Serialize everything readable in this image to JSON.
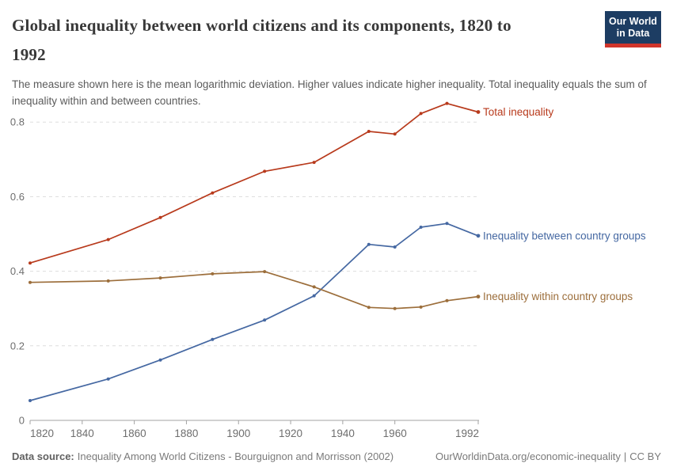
{
  "header": {
    "title": "Global inequality between world citizens and its components, 1820 to\n1992",
    "subtitle": "The measure shown here is the mean logarithmic deviation. Higher values indicate higher inequality. Total inequality equals the sum of inequality within and between countries.",
    "logo": {
      "line1": "Our World",
      "line2": "in Data",
      "bg_color": "#1D3D63",
      "bar_color": "#D0352B"
    }
  },
  "chart_data": {
    "type": "line",
    "x": [
      1820,
      1850,
      1870,
      1890,
      1910,
      1929,
      1950,
      1960,
      1970,
      1980,
      1992
    ],
    "series": [
      {
        "name": "Total inequality",
        "color": "#B83A1C",
        "values": [
          0.422,
          0.485,
          0.544,
          0.61,
          0.668,
          0.692,
          0.775,
          0.768,
          0.823,
          0.85,
          0.827
        ]
      },
      {
        "name": "Inequality between country groups",
        "color": "#4568A2",
        "values": [
          0.053,
          0.111,
          0.162,
          0.217,
          0.269,
          0.334,
          0.472,
          0.465,
          0.518,
          0.528,
          0.495
        ]
      },
      {
        "name": "Inequality within country groups",
        "color": "#9C6E3B",
        "values": [
          0.37,
          0.374,
          0.382,
          0.393,
          0.399,
          0.358,
          0.303,
          0.3,
          0.304,
          0.321,
          0.332
        ]
      }
    ],
    "title": "Global inequality between world citizens and its components, 1820 to 1992",
    "xlabel": "",
    "ylabel": "",
    "xlim": [
      1820,
      1992
    ],
    "ylim": [
      0,
      0.88
    ],
    "xticks": [
      1820,
      1840,
      1860,
      1880,
      1900,
      1920,
      1940,
      1960,
      1992
    ],
    "yticks": [
      0,
      0.2,
      0.4,
      0.6,
      0.8
    ],
    "grid": "horizontal dashed",
    "legend_position": "right-of-line-ends",
    "colors": {
      "grid": "#DDDDDD",
      "axis": "#A3A3A3",
      "tick_label": "#6e6e6e"
    }
  },
  "footer": {
    "data_source_label": "Data source:",
    "data_source_text": "Inequality Among World Citizens - Bourguignon and Morrisson (2002)",
    "link": "OurWorldinData.org/economic-inequality",
    "divider": "|",
    "license": "CC BY"
  }
}
